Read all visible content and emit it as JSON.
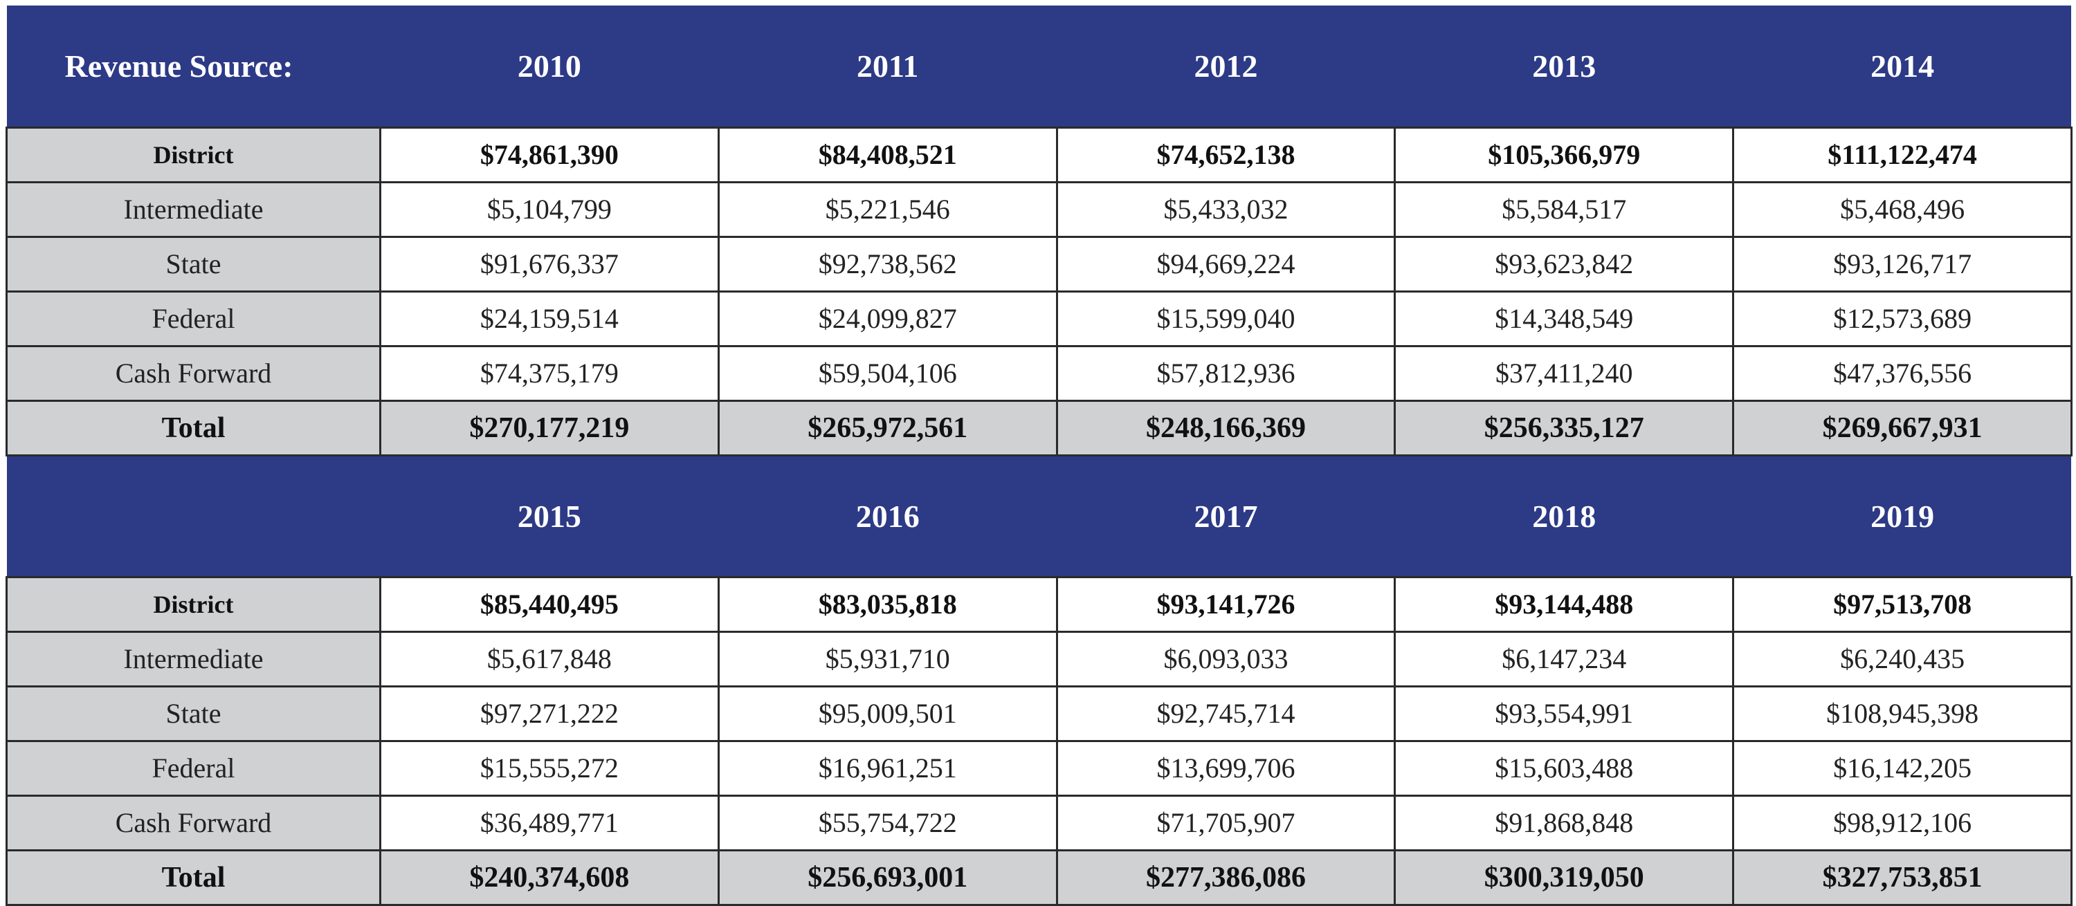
{
  "header": {
    "label": "Revenue Source:",
    "blank_label": ""
  },
  "row_labels": [
    "District",
    "Intermediate",
    "State",
    "Federal",
    "Cash Forward",
    "Total"
  ],
  "table1": {
    "years": [
      "2010",
      "2011",
      "2012",
      "2013",
      "2014"
    ],
    "rows": [
      [
        "$74,861,390",
        "$84,408,521",
        "$74,652,138",
        "$105,366,979",
        "$111,122,474"
      ],
      [
        "$5,104,799",
        "$5,221,546",
        "$5,433,032",
        "$5,584,517",
        "$5,468,496"
      ],
      [
        "$91,676,337",
        "$92,738,562",
        "$94,669,224",
        "$93,623,842",
        "$93,126,717"
      ],
      [
        "$24,159,514",
        "$24,099,827",
        "$15,599,040",
        "$14,348,549",
        "$12,573,689"
      ],
      [
        "$74,375,179",
        "$59,504,106",
        "$57,812,936",
        "$37,411,240",
        "$47,376,556"
      ],
      [
        "$270,177,219",
        "$265,972,561",
        "$248,166,369",
        "$256,335,127",
        "$269,667,931"
      ]
    ]
  },
  "table2": {
    "years": [
      "2015",
      "2016",
      "2017",
      "2018",
      "2019"
    ],
    "rows": [
      [
        "$85,440,495",
        "$83,035,818",
        "$93,141,726",
        "$93,144,488",
        "$97,513,708"
      ],
      [
        "$5,617,848",
        "$5,931,710",
        "$6,093,033",
        "$6,147,234",
        "$6,240,435"
      ],
      [
        "$97,271,222",
        "$95,009,501",
        "$92,745,714",
        "$93,554,991",
        "$108,945,398"
      ],
      [
        "$15,555,272",
        "$16,961,251",
        "$13,699,706",
        "$15,603,488",
        "$16,142,205"
      ],
      [
        "$36,489,771",
        "$55,754,722",
        "$71,705,907",
        "$91,868,848",
        "$98,912,106"
      ],
      [
        "$240,374,608",
        "$256,693,001",
        "$277,386,086",
        "$300,319,050",
        "$327,753,851"
      ]
    ]
  },
  "colors": {
    "header_bg": "#2d3a86",
    "label_bg": "#cfd1d2",
    "grid": "#2a2a2a"
  }
}
